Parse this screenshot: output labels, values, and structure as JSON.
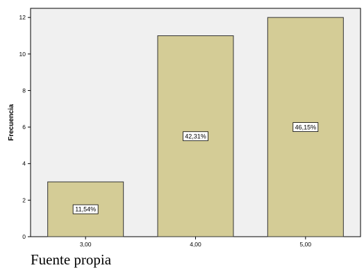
{
  "chart_data": {
    "type": "bar",
    "categories": [
      "3,00",
      "4,00",
      "5,00"
    ],
    "values": [
      3,
      11,
      12
    ],
    "data_labels": [
      "11,54%",
      "42,31%",
      "46,15%"
    ],
    "ylabel": "Frecuencia",
    "xlabel": "",
    "ylim": [
      0,
      12.5
    ],
    "yticks": [
      0,
      2,
      4,
      6,
      8,
      10,
      12
    ],
    "ytick_labels": [
      "0",
      "2",
      "4",
      "6",
      "8",
      "10",
      "12"
    ],
    "grid": false,
    "colors": {
      "plot_background": "#f0f0f0",
      "bar_fill": "#d4cc96",
      "bar_stroke": "#333333"
    }
  },
  "caption": "Fuente propia"
}
